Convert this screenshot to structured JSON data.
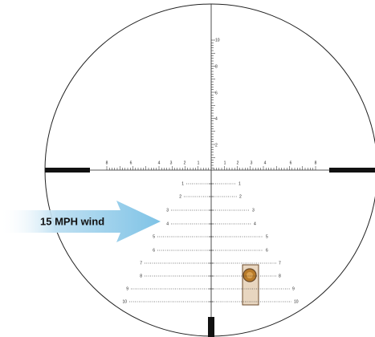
{
  "wind_label": "15 MPH wind",
  "horizontal_scale": {
    "left": [
      8,
      6,
      4,
      3,
      2,
      1
    ],
    "right": [
      1,
      2,
      3,
      4,
      6,
      8
    ]
  },
  "vertical_scale": [
    10,
    8,
    6,
    4,
    2
  ],
  "holdover_rows": [
    {
      "left": 1,
      "right": 1
    },
    {
      "left": 2,
      "right": 2
    },
    {
      "left": 3,
      "right": 3
    },
    {
      "left": 4,
      "right": 4
    },
    {
      "left": 5,
      "right": 5
    },
    {
      "left": 6,
      "right": 6
    },
    {
      "left": 7,
      "right": 7
    },
    {
      "left": 8,
      "right": 8
    },
    {
      "left": 9,
      "right": 9
    },
    {
      "left": 10,
      "right": 10
    }
  ]
}
